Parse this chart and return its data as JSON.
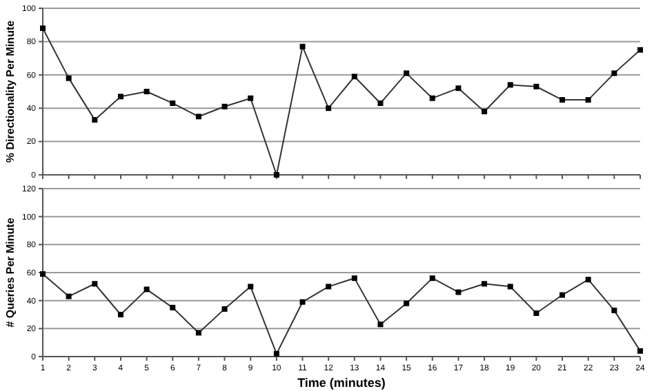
{
  "chart_data": [
    {
      "type": "line",
      "ylabel": "% Directionality Per Minute",
      "x": [
        1,
        2,
        3,
        4,
        5,
        6,
        7,
        8,
        9,
        10,
        11,
        12,
        13,
        14,
        15,
        16,
        17,
        18,
        19,
        20,
        21,
        22,
        23,
        24
      ],
      "series": [
        {
          "color": "#333333",
          "values": [
            88,
            58,
            33,
            47,
            50,
            43,
            35,
            41,
            46,
            0,
            77,
            40,
            59,
            43,
            61,
            46,
            52,
            38,
            54,
            53,
            45,
            45,
            61,
            75
          ]
        }
      ],
      "xlim": [
        1,
        24
      ],
      "xticks": [
        1,
        2,
        3,
        4,
        5,
        6,
        7,
        8,
        9,
        10,
        11,
        12,
        13,
        14,
        15,
        16,
        17,
        18,
        19,
        20,
        21,
        22,
        23,
        24
      ],
      "ylim": [
        0,
        100
      ],
      "yticks": [
        0,
        20,
        40,
        60,
        80,
        100
      ],
      "tick_labels": "y",
      "grid": "y",
      "marker": "square",
      "line_style": "solid"
    },
    {
      "type": "line",
      "xlabel": "Time (minutes)",
      "ylabel": "# Queries Per Minute",
      "x": [
        1,
        2,
        3,
        4,
        5,
        6,
        7,
        8,
        9,
        10,
        11,
        12,
        13,
        14,
        15,
        16,
        17,
        18,
        19,
        20,
        21,
        22,
        23,
        24
      ],
      "series": [
        {
          "color": "#333333",
          "values": [
            59,
            43,
            52,
            30,
            48,
            35,
            17,
            34,
            50,
            2,
            39,
            50,
            56,
            23,
            38,
            56,
            46,
            52,
            50,
            31,
            44,
            55,
            33,
            4
          ]
        }
      ],
      "xlim": [
        1,
        24
      ],
      "xticks": [
        1,
        2,
        3,
        4,
        5,
        6,
        7,
        8,
        9,
        10,
        11,
        12,
        13,
        14,
        15,
        16,
        17,
        18,
        19,
        20,
        21,
        22,
        23,
        24
      ],
      "ylim": [
        0,
        120
      ],
      "yticks": [
        0,
        20,
        40,
        60,
        80,
        100,
        120
      ],
      "grid": "y",
      "marker": "square",
      "line_style": "solid"
    }
  ]
}
